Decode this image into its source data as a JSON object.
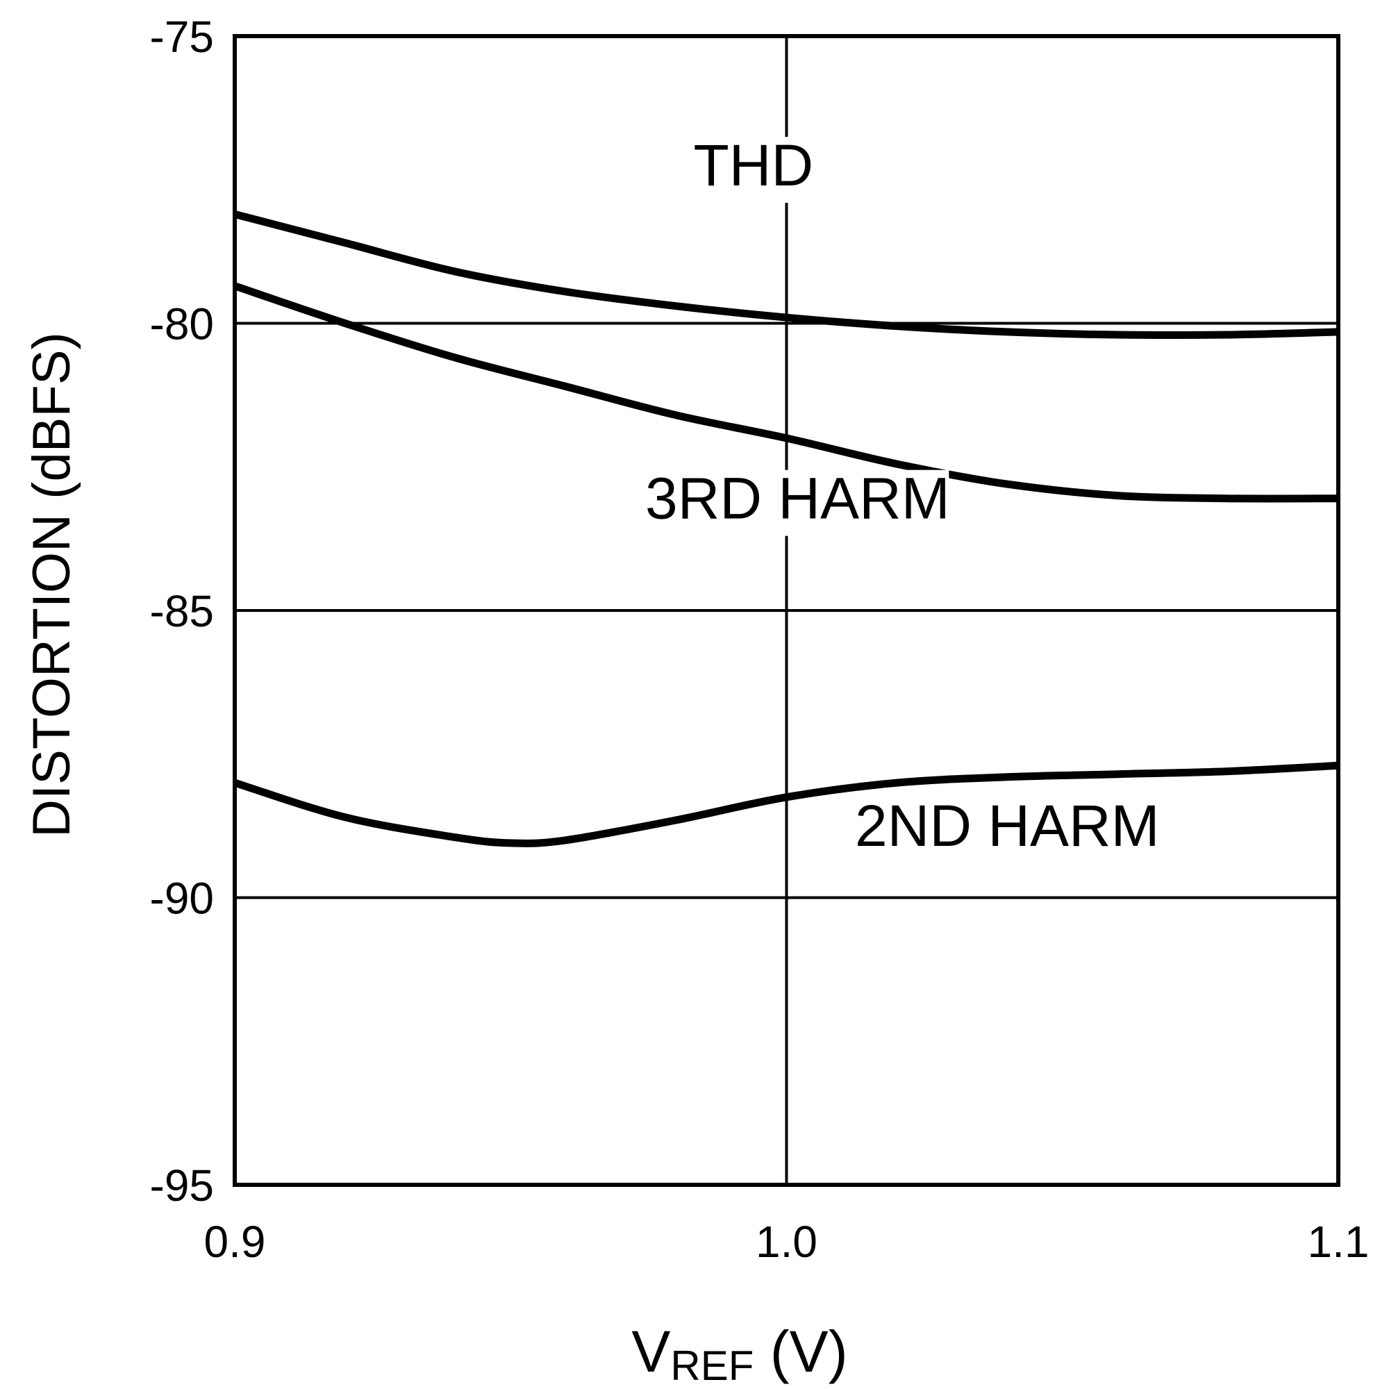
{
  "chart_data": {
    "type": "line",
    "title": "",
    "xlabel_main": "V",
    "xlabel_sub": "REF",
    "xlabel_unit": " (V)",
    "ylabel": "DISTORTION (dBFS)",
    "xlim": [
      0.9,
      1.1
    ],
    "ylim": [
      -95,
      -75
    ],
    "xticks": [
      0.9,
      1.0,
      1.1
    ],
    "xtick_labels": [
      "0.9",
      "1.0",
      "1.1"
    ],
    "yticks": [
      -75,
      -80,
      -85,
      -90,
      -95
    ],
    "ytick_labels": [
      "-75",
      "-80",
      "-85",
      "-90",
      "-95"
    ],
    "grid": true,
    "colors": {
      "line": "#000000",
      "grid": "#000000",
      "background": "#ffffff"
    },
    "series": [
      {
        "name": "THD",
        "x": [
          0.9,
          0.92,
          0.94,
          0.96,
          0.98,
          1.0,
          1.02,
          1.04,
          1.06,
          1.08,
          1.1
        ],
        "y": [
          -78.1,
          -78.6,
          -79.1,
          -79.45,
          -79.7,
          -79.9,
          -80.05,
          -80.15,
          -80.2,
          -80.2,
          -80.15
        ]
      },
      {
        "name": "3RD HARM",
        "x": [
          0.9,
          0.92,
          0.94,
          0.96,
          0.98,
          1.0,
          1.02,
          1.04,
          1.06,
          1.08,
          1.1
        ],
        "y": [
          -79.35,
          -80.0,
          -80.6,
          -81.1,
          -81.6,
          -82.0,
          -82.45,
          -82.8,
          -83.0,
          -83.05,
          -83.05
        ]
      },
      {
        "name": "2ND HARM",
        "x": [
          0.9,
          0.92,
          0.94,
          0.95,
          0.96,
          0.98,
          1.0,
          1.02,
          1.04,
          1.06,
          1.08,
          1.1
        ],
        "y": [
          -88.0,
          -88.6,
          -88.95,
          -89.05,
          -89.0,
          -88.65,
          -88.25,
          -88.0,
          -87.9,
          -87.85,
          -87.8,
          -87.7
        ]
      }
    ],
    "annotations": [
      {
        "text": "THD",
        "x": 0.994,
        "y": -77.6
      },
      {
        "text": "3RD HARM",
        "x": 1.002,
        "y": -83.4
      },
      {
        "text": "2ND HARM",
        "x": 1.04,
        "y": -89.1
      }
    ]
  }
}
